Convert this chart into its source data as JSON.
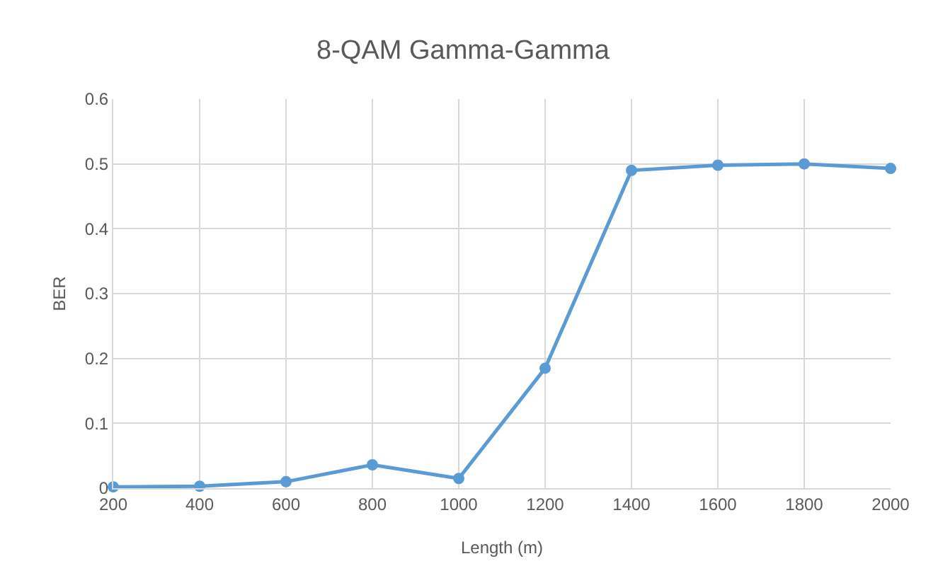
{
  "chart_data": {
    "type": "line",
    "title": "8-QAM Gamma-Gamma",
    "xlabel": "Length (m)",
    "ylabel": "BER",
    "x": [
      200,
      400,
      600,
      800,
      1000,
      1200,
      1400,
      1600,
      1800,
      2000
    ],
    "series": [
      {
        "color": "#5b9bd5",
        "values": [
          0.002,
          0.003,
          0.01,
          0.036,
          0.015,
          0.185,
          0.49,
          0.498,
          0.5,
          0.493
        ]
      }
    ],
    "xlim": [
      200,
      2000
    ],
    "xticks": [
      200,
      400,
      600,
      800,
      1000,
      1200,
      1400,
      1600,
      1800,
      2000
    ],
    "ylim": [
      0,
      0.6
    ],
    "yticks": [
      0,
      0.1,
      0.2,
      0.3,
      0.4,
      0.5,
      0.6
    ],
    "grid": true,
    "marker": "circle",
    "line_style": "solid"
  }
}
